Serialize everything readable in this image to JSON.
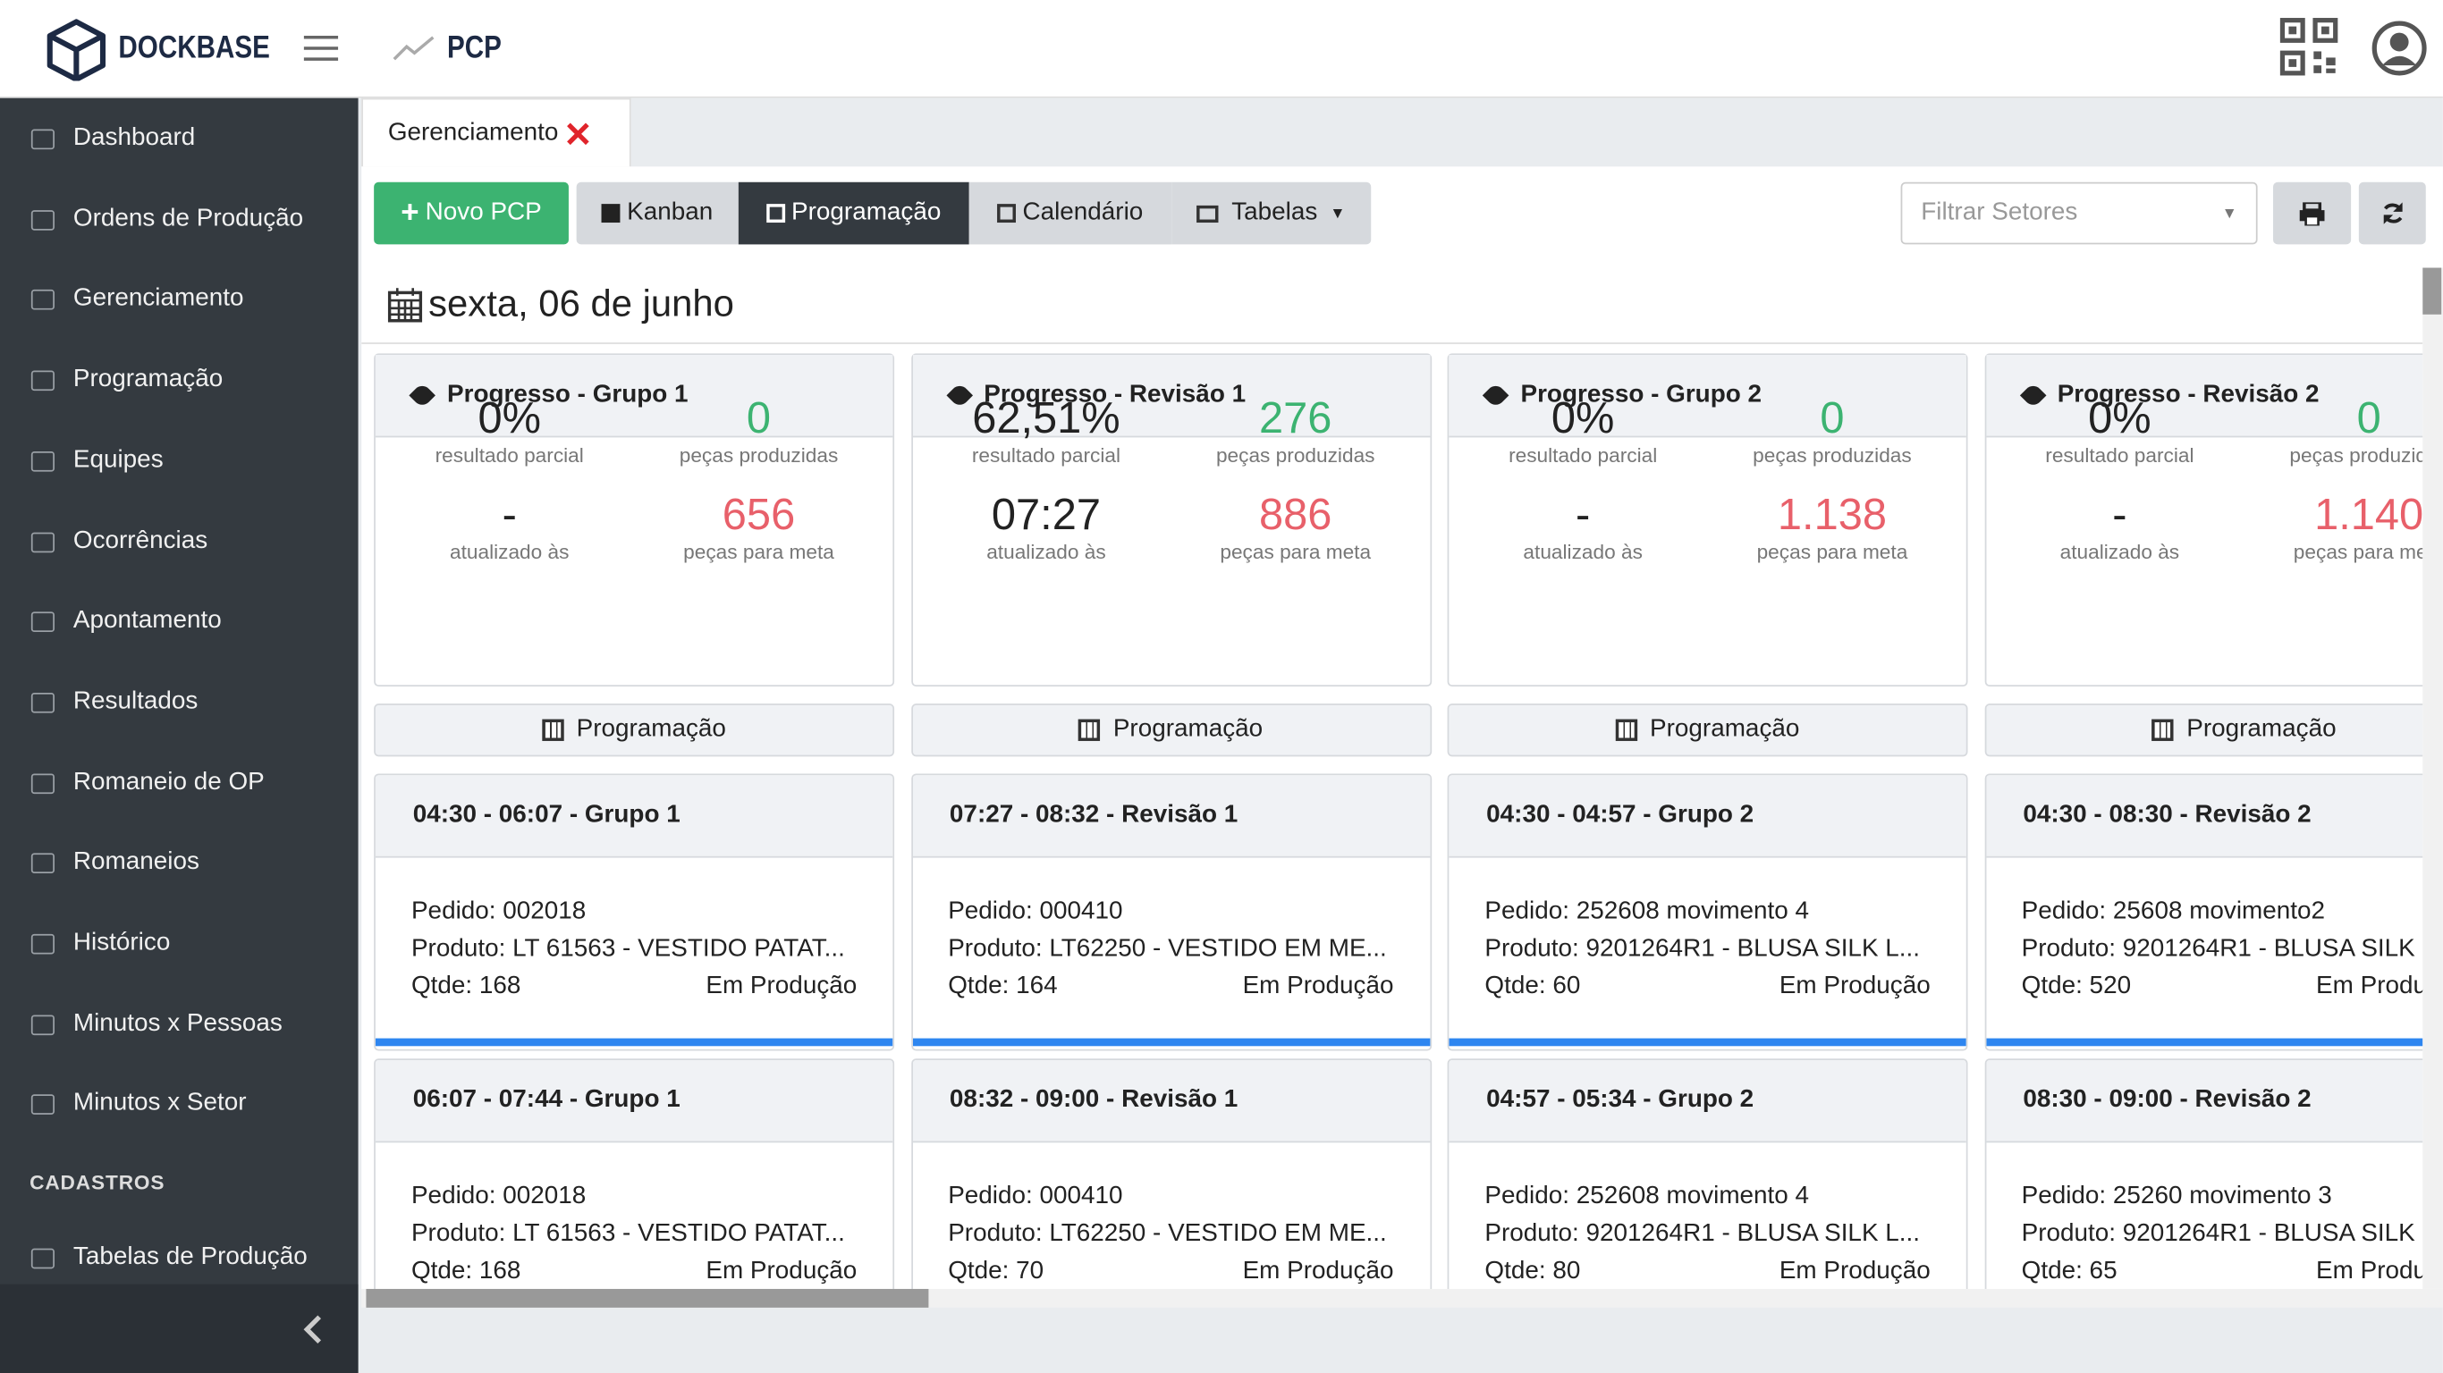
{
  "header": {
    "brand": "DOCKBASE",
    "page": "PCP"
  },
  "sidebar": {
    "items": [
      "Dashboard",
      "Ordens de Produção",
      "Gerenciamento",
      "Programação",
      "Equipes",
      "Ocorrências",
      "Apontamento",
      "Resultados",
      "Romaneio de OP",
      "Romaneios",
      "Histórico",
      "Minutos x Pessoas",
      "Minutos x Setor"
    ],
    "section": "CADASTROS",
    "section_items": [
      "Tabelas de Produção"
    ]
  },
  "tab": "Gerenciamento",
  "toolbar": {
    "buttons": [
      "Novo PCP",
      "Kanban",
      "Programação",
      "Calendário",
      "Tabelas"
    ],
    "filter": "Filtrar Setores"
  },
  "date": "sexta, 06 de junho",
  "columns": [
    {
      "title": "Progresso - Grupo 1",
      "result": "0%",
      "result_label": "resultado parcial",
      "produced": "0",
      "produced_label": "peças produzidas",
      "updated": "-",
      "updated_label": "atualizado às",
      "goal": "656",
      "goal_label": "peças para meta",
      "button": "Programação",
      "cards": [
        {
          "title": "04:30 - 06:07 - Grupo 1",
          "order": "Pedido: 002018",
          "product": "Produto: LT 61563 - VESTIDO PATAT...",
          "qty": "Qtde: 168",
          "status": "Em Produção"
        },
        {
          "title": "06:07 - 07:44 - Grupo 1",
          "order": "Pedido: 002018",
          "product": "Produto: LT 61563 - VESTIDO PATAT...",
          "qty": "Qtde: 168",
          "status": "Em Produção"
        }
      ]
    },
    {
      "title": "Progresso - Revisão 1",
      "result": "62,51%",
      "result_label": "resultado parcial",
      "produced": "276",
      "produced_label": "peças produzidas",
      "updated": "07:27",
      "updated_label": "atualizado às",
      "goal": "886",
      "goal_label": "peças para meta",
      "button": "Programação",
      "cards": [
        {
          "title": "07:27 - 08:32 - Revisão 1",
          "order": "Pedido: 000410",
          "product": "Produto: LT62250 - VESTIDO EM ME...",
          "qty": "Qtde: 164",
          "status": "Em Produção"
        },
        {
          "title": "08:32 - 09:00 - Revisão 1",
          "order": "Pedido: 000410",
          "product": "Produto: LT62250 - VESTIDO EM ME...",
          "qty": "Qtde: 70",
          "status": "Em Produção"
        }
      ]
    },
    {
      "title": "Progresso - Grupo 2",
      "result": "0%",
      "result_label": "resultado parcial",
      "produced": "0",
      "produced_label": "peças produzidas",
      "updated": "-",
      "updated_label": "atualizado às",
      "goal": "1.138",
      "goal_label": "peças para meta",
      "button": "Programação",
      "cards": [
        {
          "title": "04:30 - 04:57 - Grupo 2",
          "order": "Pedido: 252608 movimento 4",
          "product": "Produto: 9201264R1 - BLUSA SILK L...",
          "qty": "Qtde: 60",
          "status": "Em Produção"
        },
        {
          "title": "04:57 - 05:34 - Grupo 2",
          "order": "Pedido: 252608 movimento 4",
          "product": "Produto: 9201264R1 - BLUSA SILK L...",
          "qty": "Qtde: 80",
          "status": "Em Produção"
        }
      ]
    },
    {
      "title": "Progresso - Revisão 2",
      "result": "0%",
      "result_label": "resultado parcial",
      "produced": "0",
      "produced_label": "peças produzidas",
      "updated": "-",
      "updated_label": "atualizado às",
      "goal": "1.140",
      "goal_label": "peças para meta",
      "button": "Programação",
      "cards": [
        {
          "title": "04:30 - 08:30 - Revisão 2",
          "order": "Pedido: 25608 movimento2",
          "product": "Produto: 9201264R1 - BLUSA SILK",
          "qty": "Qtde: 520",
          "status": "Em Produção"
        },
        {
          "title": "08:30 - 09:00 - Revisão 2",
          "order": "Pedido: 25260 movimento 3",
          "product": "Produto: 9201264R1 - BLUSA SILK",
          "qty": "Qtde: 65",
          "status": "Em Produção"
        }
      ]
    }
  ]
}
